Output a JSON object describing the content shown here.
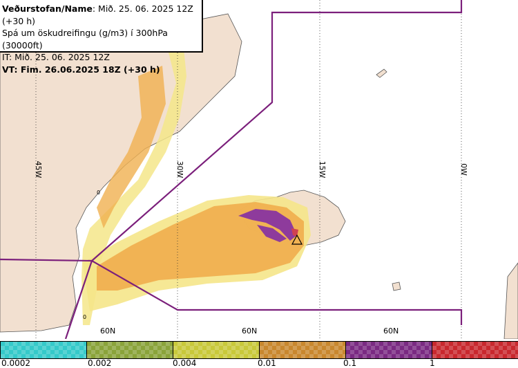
{
  "title": {
    "line1_bold": "Veðurstofan/Name",
    "line1_rest": ": Mið. 25. 06. 2025 12Z (+30 h)",
    "line2": "Spá um öskudreifingu (g/m3) í 300hPa (30000ft)",
    "line3": "IT: Mið. 25. 06. 2025 12Z",
    "line4": "VT: Fim. 26.06.2025 18Z (+30 h)"
  },
  "map": {
    "longitude_labels": [
      "45W",
      "30W",
      "15W",
      "0W"
    ],
    "latitude_labels": [
      "60N",
      "60N",
      "60N"
    ],
    "zero_labels": [
      "0",
      "0"
    ],
    "volcano_symbol": "triangle-icon",
    "colors": {
      "land": "#f2e0d0",
      "sea": "#ffffff",
      "boundary": "#7b1f7b",
      "ash_low": "#f5e68a",
      "ash_mid": "#f0b050",
      "ash_high": "#8e3b9c"
    }
  },
  "legend": {
    "tick_labels": [
      "0.0002",
      "0.002",
      "0.004",
      "0.01",
      "0.1",
      "1"
    ],
    "colors": [
      "#35c9c9",
      "#8aa33a",
      "#c8c83a",
      "#c8872e",
      "#7a2a82",
      "#c8282e"
    ]
  }
}
